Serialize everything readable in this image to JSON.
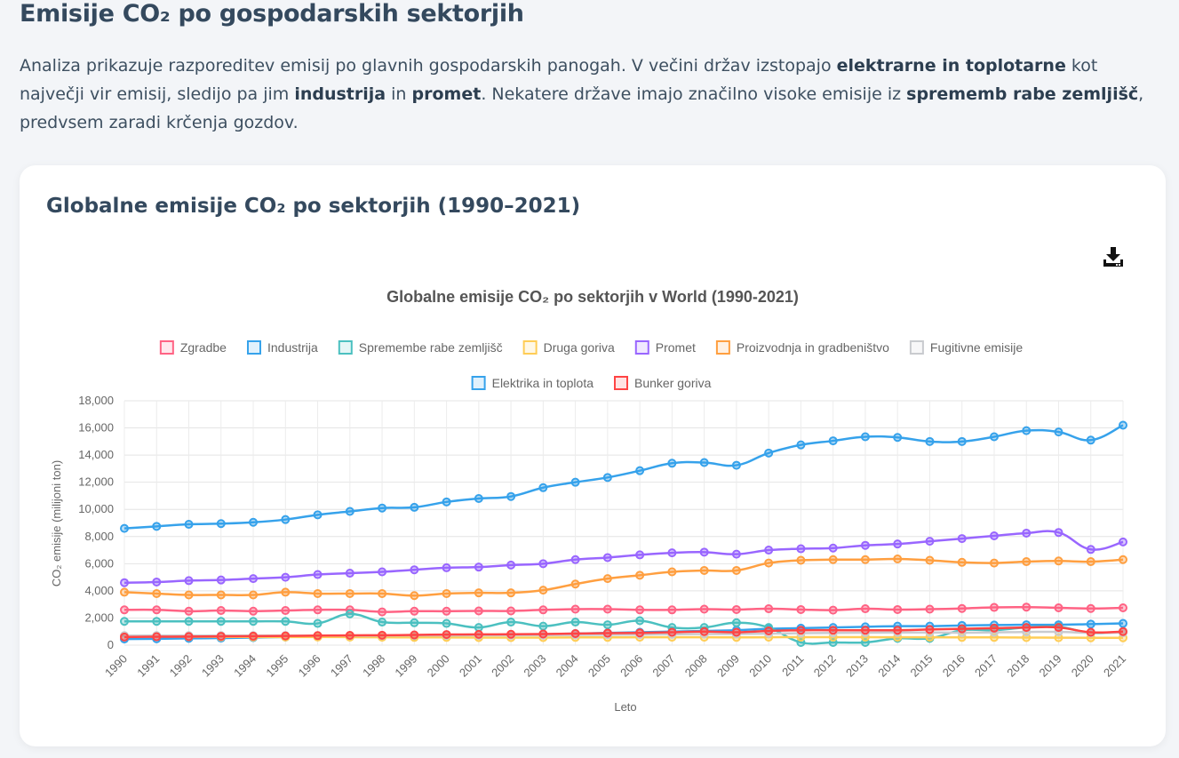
{
  "page": {
    "title": "Emisije CO₂ po gospodarskih sektorjih",
    "intro": {
      "p1": "Analiza prikazuje razporeditev emisij po glavnih gospodarskih panogah. V večini držav izstopajo ",
      "b1": "elektrarne in toplotarne",
      "p2": " kot največji vir emisij, sledijo pa jim ",
      "b2": "industrija",
      "p3": " in ",
      "b3": "promet",
      "p4": ". Nekatere države imajo značilno visoke emisije iz ",
      "b4": "sprememb rabe zemljišč",
      "p5": ", predvsem zaradi krčenja gozdov."
    }
  },
  "card": {
    "title": "Globalne emisije CO₂ po sektorjih (1990–2021)",
    "download_icon": "download-icon"
  },
  "chart_data": {
    "type": "line",
    "title": "Globalne emisije CO₂ po sektorjih v World (1990-2021)",
    "xlabel": "Leto",
    "ylabel": "CO₂ emisije (milijoni ton)",
    "ylim": [
      0,
      18000
    ],
    "yticks": [
      0,
      2000,
      4000,
      6000,
      8000,
      10000,
      12000,
      14000,
      16000,
      18000
    ],
    "ytick_labels": [
      "0",
      "2,000",
      "4,000",
      "6,000",
      "8,000",
      "10,000",
      "12,000",
      "14,000",
      "16,000",
      "18,000"
    ],
    "grid": true,
    "legend_position": "top",
    "x": [
      "1990",
      "1991",
      "1992",
      "1993",
      "1994",
      "1995",
      "1996",
      "1997",
      "1998",
      "1999",
      "2000",
      "2001",
      "2002",
      "2003",
      "2004",
      "2005",
      "2006",
      "2007",
      "2008",
      "2009",
      "2010",
      "2011",
      "2012",
      "2013",
      "2014",
      "2015",
      "2016",
      "2017",
      "2018",
      "2019",
      "2020",
      "2021"
    ],
    "series": [
      {
        "name": "Zgradbe",
        "color": "#ff6384",
        "values": [
          2600,
          2600,
          2500,
          2550,
          2500,
          2550,
          2600,
          2600,
          2450,
          2500,
          2500,
          2520,
          2520,
          2600,
          2650,
          2650,
          2600,
          2600,
          2650,
          2620,
          2680,
          2620,
          2580,
          2680,
          2620,
          2650,
          2700,
          2780,
          2800,
          2750,
          2700,
          2750
        ]
      },
      {
        "name": "Industrija",
        "color": "#36a2eb",
        "values": [
          450,
          470,
          500,
          520,
          560,
          600,
          620,
          640,
          660,
          690,
          720,
          740,
          760,
          800,
          850,
          900,
          950,
          1000,
          1050,
          1100,
          1200,
          1250,
          1300,
          1350,
          1400,
          1400,
          1450,
          1480,
          1500,
          1500,
          1550,
          1600
        ]
      },
      {
        "name": "Spremembe rabe zemljišč",
        "color": "#4bc0c0",
        "values": [
          1750,
          1750,
          1750,
          1750,
          1750,
          1750,
          1600,
          2300,
          1700,
          1650,
          1600,
          1300,
          1700,
          1400,
          1700,
          1500,
          1800,
          1300,
          1300,
          1650,
          1300,
          200,
          200,
          200,
          500,
          500,
          1100,
          1100,
          1300,
          1350,
          900,
          1000
        ]
      },
      {
        "name": "Druga goriva",
        "color": "#ffcd56",
        "values": [
          650,
          640,
          620,
          610,
          600,
          600,
          600,
          590,
          580,
          570,
          570,
          560,
          560,
          560,
          570,
          570,
          580,
          580,
          580,
          570,
          580,
          590,
          590,
          590,
          580,
          580,
          570,
          570,
          560,
          550,
          540,
          540
        ]
      },
      {
        "name": "Promet",
        "color": "#9966ff",
        "values": [
          4600,
          4650,
          4750,
          4800,
          4900,
          5000,
          5200,
          5300,
          5400,
          5550,
          5700,
          5750,
          5900,
          6000,
          6300,
          6450,
          6650,
          6800,
          6850,
          6700,
          7000,
          7100,
          7150,
          7350,
          7450,
          7650,
          7850,
          8050,
          8250,
          8300,
          7050,
          7600
        ]
      },
      {
        "name": "Proizvodnja in gradbeništvo",
        "color": "#ff9f40",
        "values": [
          3900,
          3800,
          3700,
          3700,
          3700,
          3900,
          3800,
          3800,
          3800,
          3650,
          3800,
          3850,
          3850,
          4050,
          4500,
          4900,
          5150,
          5400,
          5500,
          5500,
          6050,
          6250,
          6300,
          6300,
          6350,
          6250,
          6100,
          6050,
          6150,
          6200,
          6150,
          6300
        ]
      },
      {
        "name": "Fugitivne emisije",
        "color": "#c9cbcf",
        "values": [
          700,
          700,
          700,
          700,
          700,
          700,
          700,
          700,
          700,
          720,
          720,
          730,
          730,
          740,
          750,
          760,
          780,
          800,
          820,
          820,
          850,
          880,
          900,
          920,
          930,
          930,
          920,
          940,
          970,
          980,
          900,
          920
        ]
      },
      {
        "name": "Elektrika in toplota",
        "color": "#36a2eb",
        "values": [
          8600,
          8750,
          8900,
          8950,
          9050,
          9250,
          9600,
          9850,
          10100,
          10150,
          10550,
          10800,
          10950,
          11600,
          12000,
          12350,
          12850,
          13400,
          13450,
          13250,
          14150,
          14750,
          15050,
          15350,
          15300,
          15000,
          15000,
          15350,
          15800,
          15700,
          15100,
          16200
        ]
      },
      {
        "name": "Bunker goriva",
        "color": "#ff4444",
        "values": [
          600,
          620,
          630,
          650,
          660,
          680,
          700,
          720,
          730,
          750,
          780,
          790,
          800,
          820,
          850,
          880,
          900,
          950,
          1000,
          950,
          1050,
          1100,
          1100,
          1100,
          1100,
          1150,
          1200,
          1250,
          1300,
          1300,
          950,
          1000
        ]
      }
    ]
  }
}
